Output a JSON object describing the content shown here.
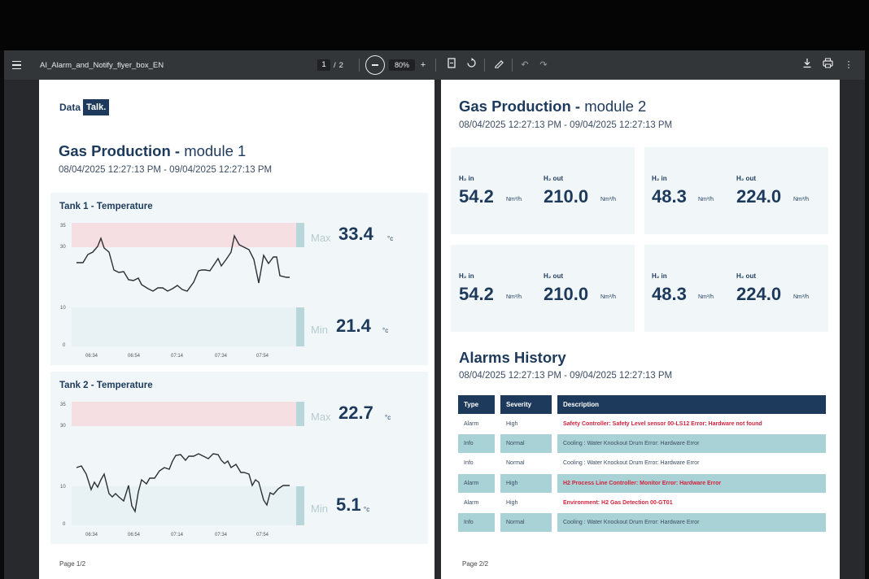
{
  "viewer": {
    "file_name": "AI_Alarm_and_Notify_flyer_box_EN",
    "current_page": "1",
    "page_sep": "/",
    "total_pages": "2",
    "zoom": "80%",
    "icons": [
      "menu-icon",
      "zoom-out-icon",
      "zoom-in-icon",
      "fit-page-icon",
      "rotate-icon",
      "annotate-icon",
      "undo-icon",
      "redo-icon",
      "download-icon",
      "print-icon",
      "more-icon"
    ]
  },
  "page1": {
    "logo_data": "Data",
    "logo_talk": "Talk.",
    "title_bold": "Gas Production - ",
    "title_light": "module 1",
    "date_range": "08/04/2025 12:27:13 PM - 09/04/2025 12:27:13 PM",
    "page_label": "Page 1/2",
    "tanks": [
      {
        "title": "Tank 1 - Temperature",
        "y_ticks": [
          "35",
          "30",
          "10",
          "0"
        ],
        "x_ticks": [
          "06:34",
          "06:54",
          "07:14",
          "07:34",
          "07:54"
        ],
        "max_label": "Max",
        "max_value": "33.4",
        "min_label": "Min",
        "min_value": "21.4",
        "unit": "°c"
      },
      {
        "title": "Tank 2 - Temperature",
        "y_ticks": [
          "35",
          "30",
          "10",
          "0"
        ],
        "x_ticks": [
          "06:34",
          "06:54",
          "07:14",
          "07:34",
          "07:54"
        ],
        "max_label": "Max",
        "max_value": "22.7",
        "min_label": "Min",
        "min_value": "5.1",
        "unit": "°c"
      }
    ]
  },
  "page2": {
    "title_bold": "Gas Production - ",
    "title_light": "module 2",
    "date_range": "08/04/2025 12:27:13 PM - 09/04/2025 12:27:13 PM",
    "kpis": [
      {
        "in_label": "H₂ in",
        "in_value": "54.2",
        "in_unit": "Nm³/h",
        "out_label": "H₂ out",
        "out_value": "210.0",
        "out_unit": "Nm³/h"
      },
      {
        "in_label": "H₂ in",
        "in_value": "48.3",
        "in_unit": "Nm³/h",
        "out_label": "H₂ out",
        "out_value": "224.0",
        "out_unit": "Nm³/h"
      },
      {
        "in_label": "H₂ in",
        "in_value": "54.2",
        "in_unit": "Nm³/h",
        "out_label": "H₂ out",
        "out_value": "210.0",
        "out_unit": "Nm³/h"
      },
      {
        "in_label": "H₂ in",
        "in_value": "48.3",
        "in_unit": "Nm³/h",
        "out_label": "H₂ out",
        "out_value": "224.0",
        "out_unit": "Nm³/h"
      }
    ],
    "alarms_title": "Alarms History",
    "alarms_date_range": "08/04/2025 12:27:13 PM - 09/04/2025 12:27:13 PM",
    "alarms_headers": [
      "Type",
      "Severity",
      "Description"
    ],
    "alarms_rows": [
      {
        "type": "Alarm",
        "severity": "High",
        "description": "Safety Controller: Safety Level sensor 00-LS12 Error: Hardware not found"
      },
      {
        "type": "Info",
        "severity": "Normal",
        "description": "Cooling : Water Knockout Drum Error: Hardware Error"
      },
      {
        "type": "Info",
        "severity": "Normal",
        "description": "Cooling : Water Knockout Drum Error: Hardware Error"
      },
      {
        "type": "Alarm",
        "severity": "High",
        "description": "H2 Process Line Controller: Monitor Error: Hardware Error"
      },
      {
        "type": "Alarm",
        "severity": "High",
        "description": "Environment: H2 Gas Detection 00-GT01"
      },
      {
        "type": "Info",
        "severity": "Normal",
        "description": "Cooling : Water Knockout Drum Error: Hardware Error"
      }
    ],
    "page_label": "Page 2/2"
  },
  "colors": {
    "navy": "#1d3a5c",
    "alarm_red": "#d1243f",
    "row_highlight": "#a9d2d6",
    "max_band": "#f6dfe2",
    "card_bg": "#f1f7f8",
    "toolbar_bg": "#323639"
  }
}
